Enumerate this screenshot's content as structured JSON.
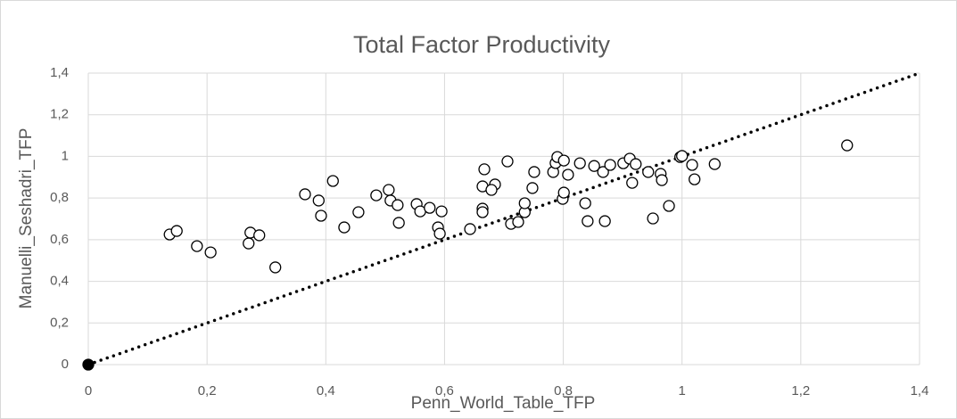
{
  "chart_data": {
    "type": "scatter",
    "title": "Total Factor Productivity",
    "x_label": "Penn_World_Table_TFP",
    "y_label": "Manuelli_Seshadri_TFP",
    "xlim": [
      0,
      1.4
    ],
    "ylim": [
      0,
      1.4
    ],
    "xticks": [
      0,
      {
        "value": 0.2,
        "label": "0,2"
      },
      {
        "value": 0.4,
        "label": "0,4"
      },
      {
        "value": 0.6,
        "label": "0,6"
      },
      {
        "value": 0.8,
        "label": "0,8"
      },
      1,
      {
        "value": 1.2,
        "label": "1,2"
      },
      {
        "value": 1.4,
        "label": "1,4"
      }
    ],
    "yticks": [
      0,
      {
        "value": 0.2,
        "label": "0,2"
      },
      {
        "value": 0.4,
        "label": "0,4"
      },
      {
        "value": 0.6,
        "label": "0,6"
      },
      {
        "value": 0.8,
        "label": "0,8"
      },
      1,
      {
        "value": 1.2,
        "label": "1,2"
      },
      {
        "value": 1.4,
        "label": "1,4"
      }
    ],
    "grid": true,
    "series": [
      {
        "color": "#ffffff",
        "edge_color": "#000000",
        "style": "markers",
        "x": [
          0.137,
          0.149,
          0.183,
          0.206,
          0.27,
          0.273,
          0.288,
          0.315,
          0.365,
          0.388,
          0.392,
          0.412,
          0.431,
          0.455,
          0.485,
          0.506,
          0.509,
          0.521,
          0.523,
          0.553,
          0.559,
          0.575,
          0.589,
          0.592,
          0.595,
          0.643,
          0.664,
          0.664,
          0.664,
          0.667,
          0.685,
          0.679,
          0.706,
          0.712,
          0.724,
          0.735,
          0.735,
          0.748,
          0.751,
          0.783,
          0.787,
          0.79,
          0.801,
          0.799,
          0.801,
          0.808,
          0.828,
          0.837,
          0.841,
          0.852,
          0.867,
          0.87,
          0.879,
          0.901,
          0.912,
          0.916,
          0.922,
          0.943,
          0.951,
          0.964,
          0.966,
          0.978,
          0.997,
          1.0,
          1.017,
          1.021,
          1.055,
          1.278
        ],
        "values": [
          0.625,
          0.642,
          0.569,
          0.539,
          0.582,
          0.634,
          0.621,
          0.467,
          0.818,
          0.788,
          0.715,
          0.882,
          0.659,
          0.732,
          0.813,
          0.839,
          0.788,
          0.766,
          0.681,
          0.771,
          0.736,
          0.753,
          0.659,
          0.629,
          0.736,
          0.651,
          0.749,
          0.732,
          0.856,
          0.938,
          0.865,
          0.839,
          0.976,
          0.676,
          0.685,
          0.732,
          0.775,
          0.848,
          0.925,
          0.925,
          0.968,
          0.997,
          0.98,
          0.796,
          0.826,
          0.912,
          0.967,
          0.775,
          0.689,
          0.954,
          0.925,
          0.689,
          0.959,
          0.967,
          0.989,
          0.873,
          0.963,
          0.925,
          0.702,
          0.916,
          0.886,
          0.762,
          0.997,
          1.002,
          0.959,
          0.89,
          0.963,
          1.053
        ]
      },
      {
        "color": "#000000",
        "edge_color": "#000000",
        "style": "markers",
        "x": [
          0
        ],
        "values": [
          0
        ]
      },
      {
        "color": "#000000",
        "style": "dotted-line",
        "x": [
          0,
          1.4
        ],
        "values": [
          0,
          1.4
        ]
      }
    ]
  }
}
